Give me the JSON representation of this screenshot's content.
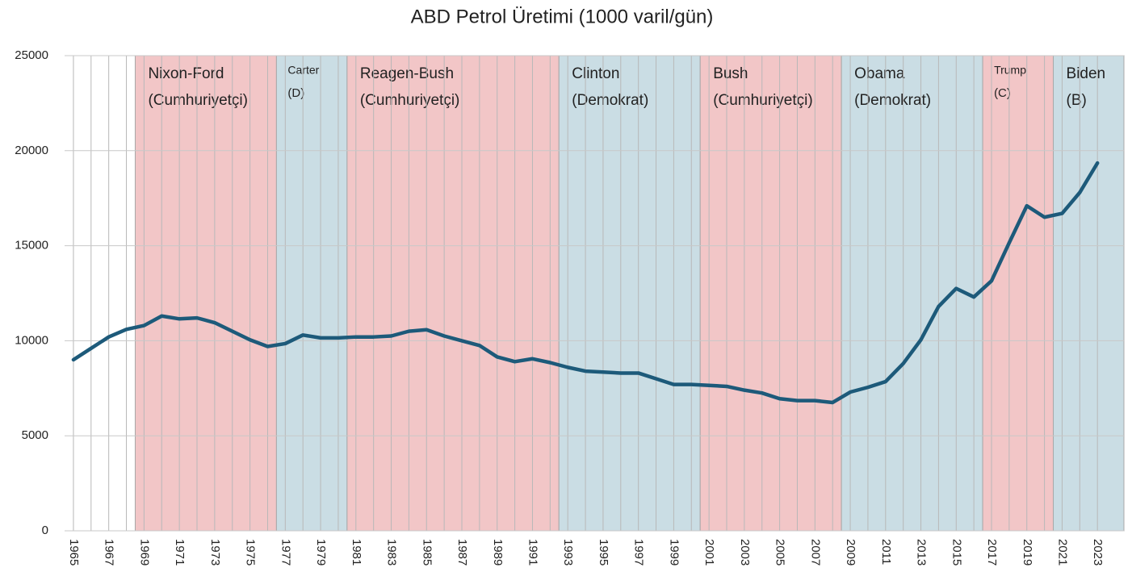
{
  "chart_data": {
    "type": "line",
    "title": "ABD Petrol Üretimi (1000 varil/gün)",
    "x": [
      1965,
      1966,
      1967,
      1968,
      1969,
      1970,
      1971,
      1972,
      1973,
      1974,
      1975,
      1976,
      1977,
      1978,
      1979,
      1980,
      1981,
      1982,
      1983,
      1984,
      1985,
      1986,
      1987,
      1988,
      1989,
      1990,
      1991,
      1992,
      1993,
      1994,
      1995,
      1996,
      1997,
      1998,
      1999,
      2000,
      2001,
      2002,
      2003,
      2004,
      2005,
      2006,
      2007,
      2008,
      2009,
      2010,
      2011,
      2012,
      2013,
      2014,
      2015,
      2016,
      2017,
      2018,
      2019,
      2020,
      2021,
      2022,
      2023
    ],
    "series": [
      {
        "name": "ABD Petrol Üretimi",
        "color": "#1d5a7a",
        "values": [
          9000,
          9600,
          10200,
          10600,
          10800,
          11300,
          11150,
          11200,
          10950,
          10500,
          10050,
          9700,
          9850,
          10300,
          10150,
          10150,
          10200,
          10200,
          10250,
          10500,
          10580,
          10250,
          10000,
          9750,
          9150,
          8900,
          9050,
          8850,
          8600,
          8400,
          8350,
          8300,
          8300,
          8000,
          7700,
          7700,
          7650,
          7600,
          7400,
          7250,
          6950,
          6850,
          6850,
          6750,
          7300,
          7550,
          7850,
          8800,
          10050,
          11800,
          12750,
          12300,
          13150,
          15150,
          17100,
          16500,
          16700,
          17800,
          19350
        ]
      }
    ],
    "xlim": [
      1964.5,
      2024.5
    ],
    "xticks": [
      1965,
      1967,
      1969,
      1971,
      1973,
      1975,
      1977,
      1979,
      1981,
      1983,
      1985,
      1987,
      1989,
      1991,
      1993,
      1995,
      1997,
      1999,
      2001,
      2003,
      2005,
      2007,
      2009,
      2011,
      2013,
      2015,
      2017,
      2019,
      2021,
      2023
    ],
    "ylim": [
      0,
      25000
    ],
    "yticks": [
      0,
      5000,
      10000,
      15000,
      20000,
      25000
    ],
    "grid": true,
    "periods": [
      {
        "label": "Nixon-Ford",
        "sublabel": "(Cumhuriyetçi)",
        "start": 1968.5,
        "end": 1976.5,
        "color": "#f2c6c7"
      },
      {
        "label": "Carter",
        "sublabel": "(D)",
        "start": 1976.5,
        "end": 1980.5,
        "color": "#cadde4"
      },
      {
        "label": "Reagen-Bush",
        "sublabel": "(Cumhuriyetçi)",
        "start": 1980.5,
        "end": 1992.5,
        "color": "#f2c6c7"
      },
      {
        "label": "Clinton",
        "sublabel": "(Demokrat)",
        "start": 1992.5,
        "end": 2000.5,
        "color": "#cadde4"
      },
      {
        "label": "Bush",
        "sublabel": "(Cumhuriyetçi)",
        "start": 2000.5,
        "end": 2008.5,
        "color": "#f2c6c7"
      },
      {
        "label": "Obama",
        "sublabel": "(Demokrat)",
        "start": 2008.5,
        "end": 2016.5,
        "color": "#cadde4"
      },
      {
        "label": "Trump",
        "sublabel": "(C)",
        "start": 2016.5,
        "end": 2020.5,
        "color": "#f2c6c7"
      },
      {
        "label": "Biden",
        "sublabel": "(B)",
        "start": 2020.5,
        "end": 2024.5,
        "color": "#cadde4"
      }
    ]
  }
}
